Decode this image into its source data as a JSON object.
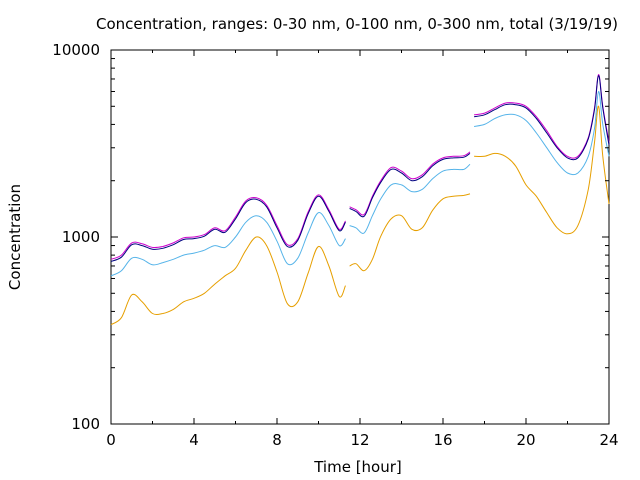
{
  "chart_data": {
    "type": "line",
    "title": "Concentration, ranges: 0-30 nm, 0-100 nm, 0-300 nm, total (3/19/19)",
    "xlabel": "Time [hour]",
    "ylabel": "Concentration",
    "x_scale": "linear",
    "y_scale": "log",
    "xlim": [
      0,
      24
    ],
    "ylim": [
      100,
      10000
    ],
    "x_ticks": [
      0,
      4,
      8,
      12,
      16,
      20,
      24
    ],
    "x_tick_labels": [
      "0",
      "4",
      "8",
      "12",
      "16",
      "20",
      "24"
    ],
    "y_ticks": [
      100,
      1000,
      10000
    ],
    "y_tick_labels": [
      "100",
      "1000",
      "10000"
    ],
    "grid": false,
    "legend": "none",
    "series": [
      {
        "color": "#e69f00",
        "segments": [
          {
            "x": [
              0,
              0.5,
              1.0,
              1.5,
              2.0,
              2.5,
              3.0,
              3.5,
              4.0,
              4.5,
              5.0,
              5.5,
              6.0,
              6.5,
              7.0,
              7.5,
              8.0,
              8.5,
              9.0,
              9.5,
              10.0,
              10.5,
              11.0,
              11.3
            ],
            "y": [
              340,
              370,
              490,
              450,
              390,
              390,
              410,
              450,
              470,
              500,
              560,
              620,
              680,
              850,
              1000,
              900,
              650,
              440,
              450,
              640,
              890,
              700,
              480,
              550
            ]
          },
          {
            "x": [
              11.5,
              11.8,
              12.2,
              12.6,
              13.0,
              13.5,
              14.0,
              14.5,
              15.0,
              15.5,
              16.0,
              16.5,
              17.0,
              17.3
            ],
            "y": [
              700,
              720,
              660,
              760,
              1010,
              1250,
              1300,
              1100,
              1120,
              1390,
              1600,
              1650,
              1670,
              1700
            ]
          },
          {
            "x": [
              17.5,
              18.0,
              18.5,
              19.0,
              19.5,
              20.0,
              20.5,
              21.0,
              21.5,
              22.0,
              22.5,
              23.0,
              23.3,
              23.5,
              23.7,
              24.0
            ],
            "y": [
              2700,
              2700,
              2800,
              2700,
              2400,
              1900,
              1650,
              1350,
              1120,
              1040,
              1150,
              1800,
              3200,
              5000,
              2700,
              1500
            ]
          }
        ]
      },
      {
        "color": "#56b4e9",
        "segments": [
          {
            "x": [
              0,
              0.5,
              1.0,
              1.5,
              2.0,
              2.5,
              3.0,
              3.5,
              4.0,
              4.5,
              5.0,
              5.5,
              6.0,
              6.5,
              7.0,
              7.5,
              8.0,
              8.5,
              9.0,
              9.5,
              10.0,
              10.5,
              11.0,
              11.3
            ],
            "y": [
              620,
              660,
              770,
              760,
              710,
              730,
              760,
              800,
              820,
              850,
              900,
              880,
              1000,
              1200,
              1300,
              1200,
              950,
              720,
              770,
              1050,
              1350,
              1150,
              900,
              980
            ]
          },
          {
            "x": [
              11.5,
              11.8,
              12.2,
              12.6,
              13.0,
              13.5,
              14.0,
              14.5,
              15.0,
              15.5,
              16.0,
              16.5,
              17.0,
              17.3
            ],
            "y": [
              1150,
              1120,
              1050,
              1300,
              1600,
              1900,
              1900,
              1750,
              1800,
              2050,
              2250,
              2300,
              2300,
              2450
            ]
          },
          {
            "x": [
              17.5,
              18.0,
              18.5,
              19.0,
              19.5,
              20.0,
              20.5,
              21.0,
              21.5,
              22.0,
              22.5,
              23.0,
              23.3,
              23.5,
              23.7,
              24.0
            ],
            "y": [
              3900,
              4000,
              4300,
              4500,
              4500,
              4200,
              3600,
              3000,
              2500,
              2200,
              2200,
              2700,
              3800,
              6000,
              4000,
              2700
            ]
          }
        ]
      },
      {
        "color": "#cc00cc",
        "segments": [
          {
            "x": [
              0,
              0.5,
              1.0,
              1.5,
              2.0,
              2.5,
              3.0,
              3.5,
              4.0,
              4.5,
              5.0,
              5.5,
              6.0,
              6.5,
              7.0,
              7.5,
              8.0,
              8.5,
              9.0,
              9.5,
              10.0,
              10.5,
              11.0,
              11.3
            ],
            "y": [
              760,
              800,
              930,
              920,
              880,
              890,
              930,
              990,
              1000,
              1030,
              1120,
              1080,
              1280,
              1560,
              1620,
              1480,
              1150,
              910,
              980,
              1360,
              1680,
              1400,
              1100,
              1220
            ]
          },
          {
            "x": [
              11.5,
              11.8,
              12.2,
              12.6,
              13.0,
              13.5,
              14.0,
              14.5,
              15.0,
              15.5,
              16.0,
              16.5,
              17.0,
              17.3
            ],
            "y": [
              1450,
              1400,
              1320,
              1650,
              2000,
              2350,
              2250,
              2050,
              2150,
              2450,
              2650,
              2700,
              2720,
              2850
            ]
          },
          {
            "x": [
              17.5,
              18.0,
              18.5,
              19.0,
              19.5,
              20.0,
              20.5,
              21.0,
              21.5,
              22.0,
              22.5,
              23.0,
              23.3,
              23.5,
              23.7,
              24.0
            ],
            "y": [
              4500,
              4600,
              4900,
              5200,
              5200,
              5000,
              4400,
              3700,
              3050,
              2700,
              2700,
              3400,
              4900,
              7400,
              5000,
              3200
            ]
          }
        ]
      },
      {
        "color": "#000080",
        "segments": [
          {
            "x": [
              0,
              0.5,
              1.0,
              1.5,
              2.0,
              2.5,
              3.0,
              3.5,
              4.0,
              4.5,
              5.0,
              5.5,
              6.0,
              6.5,
              7.0,
              7.5,
              8.0,
              8.5,
              9.0,
              9.5,
              10.0,
              10.5,
              11.0,
              11.3
            ],
            "y": [
              740,
              780,
              910,
              900,
              860,
              870,
              910,
              970,
              980,
              1010,
              1100,
              1060,
              1250,
              1530,
              1590,
              1450,
              1120,
              890,
              960,
              1330,
              1650,
              1370,
              1080,
              1200
            ]
          },
          {
            "x": [
              11.5,
              11.8,
              12.2,
              12.6,
              13.0,
              13.5,
              14.0,
              14.5,
              15.0,
              15.5,
              16.0,
              16.5,
              17.0,
              17.3
            ],
            "y": [
              1420,
              1370,
              1290,
              1620,
              1960,
              2300,
              2200,
              2000,
              2100,
              2400,
              2600,
              2650,
              2670,
              2800
            ]
          },
          {
            "x": [
              17.5,
              18.0,
              18.5,
              19.0,
              19.5,
              20.0,
              20.5,
              21.0,
              21.5,
              22.0,
              22.5,
              23.0,
              23.3,
              23.5,
              23.7,
              24.0
            ],
            "y": [
              4400,
              4500,
              4800,
              5100,
              5100,
              4900,
              4300,
              3600,
              3000,
              2650,
              2650,
              3350,
              4800,
              7300,
              4900,
              3100
            ]
          }
        ]
      }
    ]
  }
}
